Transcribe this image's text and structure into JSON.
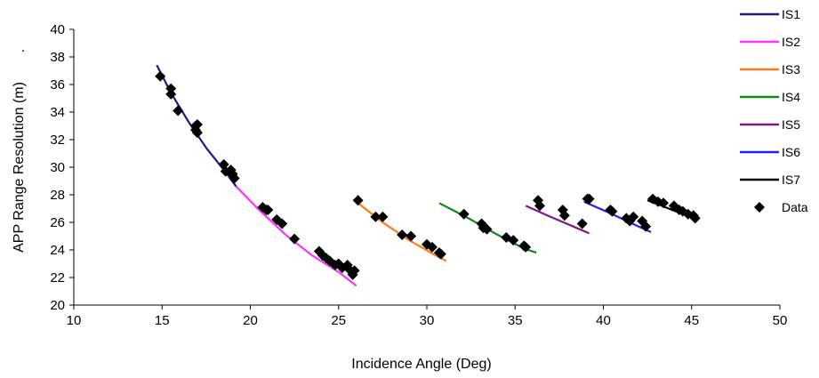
{
  "chart_data": {
    "type": "scatter",
    "title": "",
    "xlabel": "Incidence Angle (Deg)",
    "ylabel": "APP Range Resolution (m)",
    "ylabel_suffix": ".",
    "xlim": [
      10,
      50
    ],
    "ylim": [
      20,
      40
    ],
    "xticks": [
      10,
      15,
      20,
      25,
      30,
      35,
      40,
      45,
      50
    ],
    "yticks": [
      20,
      22,
      24,
      26,
      28,
      30,
      32,
      34,
      36,
      38,
      40
    ],
    "grid": false,
    "legend_position": "right",
    "series": [
      {
        "name": "IS1",
        "kind": "line",
        "color": "#1a1a8c",
        "x": [
          14.7,
          15.5,
          16.5,
          17.5,
          18.5,
          19.2
        ],
        "y": [
          37.4,
          35.4,
          33.3,
          31.4,
          29.8,
          28.6
        ]
      },
      {
        "name": "IS2",
        "kind": "line",
        "color": "#ff33ff",
        "x": [
          19.2,
          20.5,
          22.0,
          23.5,
          25.0,
          26.0
        ],
        "y": [
          28.6,
          26.9,
          25.1,
          23.6,
          22.4,
          21.4
        ]
      },
      {
        "name": "IS3",
        "kind": "line",
        "color": "#ff7a1a",
        "x": [
          26.0,
          27.5,
          29.0,
          30.5,
          31.1
        ],
        "y": [
          27.5,
          26.0,
          24.7,
          23.6,
          23.2
        ]
      },
      {
        "name": "IS4",
        "kind": "line",
        "color": "#118811",
        "x": [
          30.7,
          32.5,
          34.0,
          35.5,
          36.2
        ],
        "y": [
          27.4,
          26.2,
          25.1,
          24.1,
          23.8
        ]
      },
      {
        "name": "IS5",
        "kind": "line",
        "color": "#7f187f",
        "x": [
          35.6,
          37.0,
          38.3,
          39.2
        ],
        "y": [
          27.2,
          26.4,
          25.7,
          25.2
        ]
      },
      {
        "name": "IS6",
        "kind": "line",
        "color": "#2222ee",
        "x": [
          38.9,
          40.5,
          42.0,
          42.7
        ],
        "y": [
          27.5,
          26.6,
          25.7,
          25.3
        ]
      },
      {
        "name": "IS7",
        "kind": "line",
        "color": "#000000",
        "x": [
          42.5,
          43.5,
          44.5,
          45.2
        ],
        "y": [
          27.6,
          27.1,
          26.6,
          26.4
        ]
      },
      {
        "name": "Data",
        "kind": "marker",
        "color": "#000000",
        "x": [
          14.9,
          15.5,
          15.5,
          15.9,
          16.9,
          16.9,
          17.0,
          17.0,
          18.5,
          18.6,
          18.9,
          19.0,
          19.1,
          20.7,
          20.9,
          21.0,
          21.5,
          21.8,
          22.5,
          23.9,
          24.1,
          24.3,
          24.5,
          24.8,
          25.0,
          25.2,
          25.5,
          25.6,
          25.8,
          25.9,
          26.1,
          27.1,
          27.5,
          28.6,
          29.1,
          30.0,
          30.3,
          30.7,
          30.8,
          32.1,
          33.1,
          33.2,
          33.4,
          34.5,
          34.9,
          35.5,
          35.6,
          36.3,
          36.4,
          37.7,
          37.8,
          38.8,
          39.1,
          39.2,
          40.4,
          40.5,
          41.3,
          41.5,
          41.7,
          42.2,
          42.4,
          42.8,
          43.1,
          43.4,
          44.0,
          44.3,
          44.5,
          44.8,
          45.1,
          45.2
        ],
        "y": [
          36.6,
          35.7,
          35.3,
          34.1,
          33.0,
          32.7,
          33.1,
          32.5,
          30.2,
          29.7,
          29.8,
          29.5,
          29.2,
          27.1,
          26.9,
          26.9,
          26.2,
          25.9,
          24.8,
          23.9,
          23.6,
          23.4,
          23.2,
          22.9,
          23.0,
          22.7,
          22.9,
          22.6,
          22.2,
          22.5,
          27.6,
          26.4,
          26.4,
          25.1,
          25.0,
          24.4,
          24.2,
          23.8,
          23.7,
          26.6,
          25.9,
          25.6,
          25.5,
          24.9,
          24.7,
          24.3,
          24.2,
          27.6,
          27.2,
          26.9,
          26.5,
          25.9,
          27.7,
          27.7,
          26.9,
          26.8,
          26.3,
          26.1,
          26.4,
          26.1,
          25.7,
          27.7,
          27.5,
          27.4,
          27.2,
          26.9,
          26.8,
          26.6,
          26.5,
          26.3
        ]
      }
    ]
  }
}
